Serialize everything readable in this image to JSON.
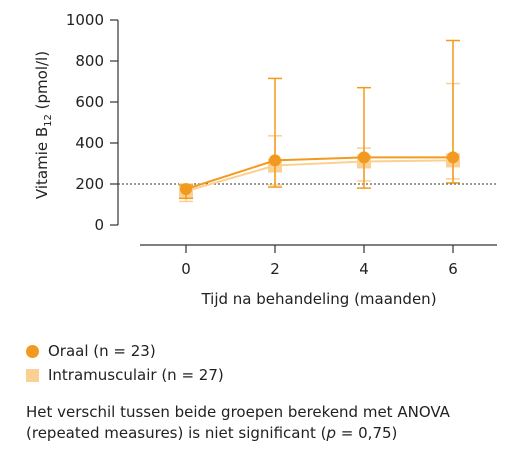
{
  "chart_data": {
    "type": "line",
    "title": "",
    "xlabel": "Tijd na behandeling (maanden)",
    "ylabel_main": "Vitamie B",
    "ylabel_sub": "12",
    "ylabel_unit": " (pmol/l)",
    "ylim": [
      0,
      1000
    ],
    "yticks": [
      0,
      200,
      400,
      600,
      800,
      1000
    ],
    "xticks": [
      0,
      2,
      4,
      6
    ],
    "reference_line": 200,
    "series": [
      {
        "name": "Oraal (n = 23)",
        "color": "#f29a1f",
        "marker": "circle",
        "x": [
          0,
          2,
          4,
          6
        ],
        "y": [
          175,
          315,
          330,
          330
        ],
        "err_low": [
          130,
          185,
          180,
          205
        ],
        "err_high": [
          195,
          715,
          670,
          900
        ]
      },
      {
        "name": "Intramusculair (n = 27)",
        "color": "#fbd193",
        "marker": "square",
        "x": [
          0,
          2,
          4,
          6
        ],
        "y": [
          165,
          290,
          310,
          315
        ],
        "err_low": [
          115,
          195,
          215,
          225
        ],
        "err_high": [
          200,
          435,
          375,
          690
        ]
      }
    ]
  },
  "legend": {
    "item1": "Oraal (n = 23)",
    "item2": "Intramusculair (n = 27)"
  },
  "note": {
    "line1": "Het verschil tussen beide groepen berekend met ANOVA",
    "line2_start": "(repeated measures) is niet significant (",
    "line2_p": "p",
    "line2_end": " = 0,75)"
  }
}
